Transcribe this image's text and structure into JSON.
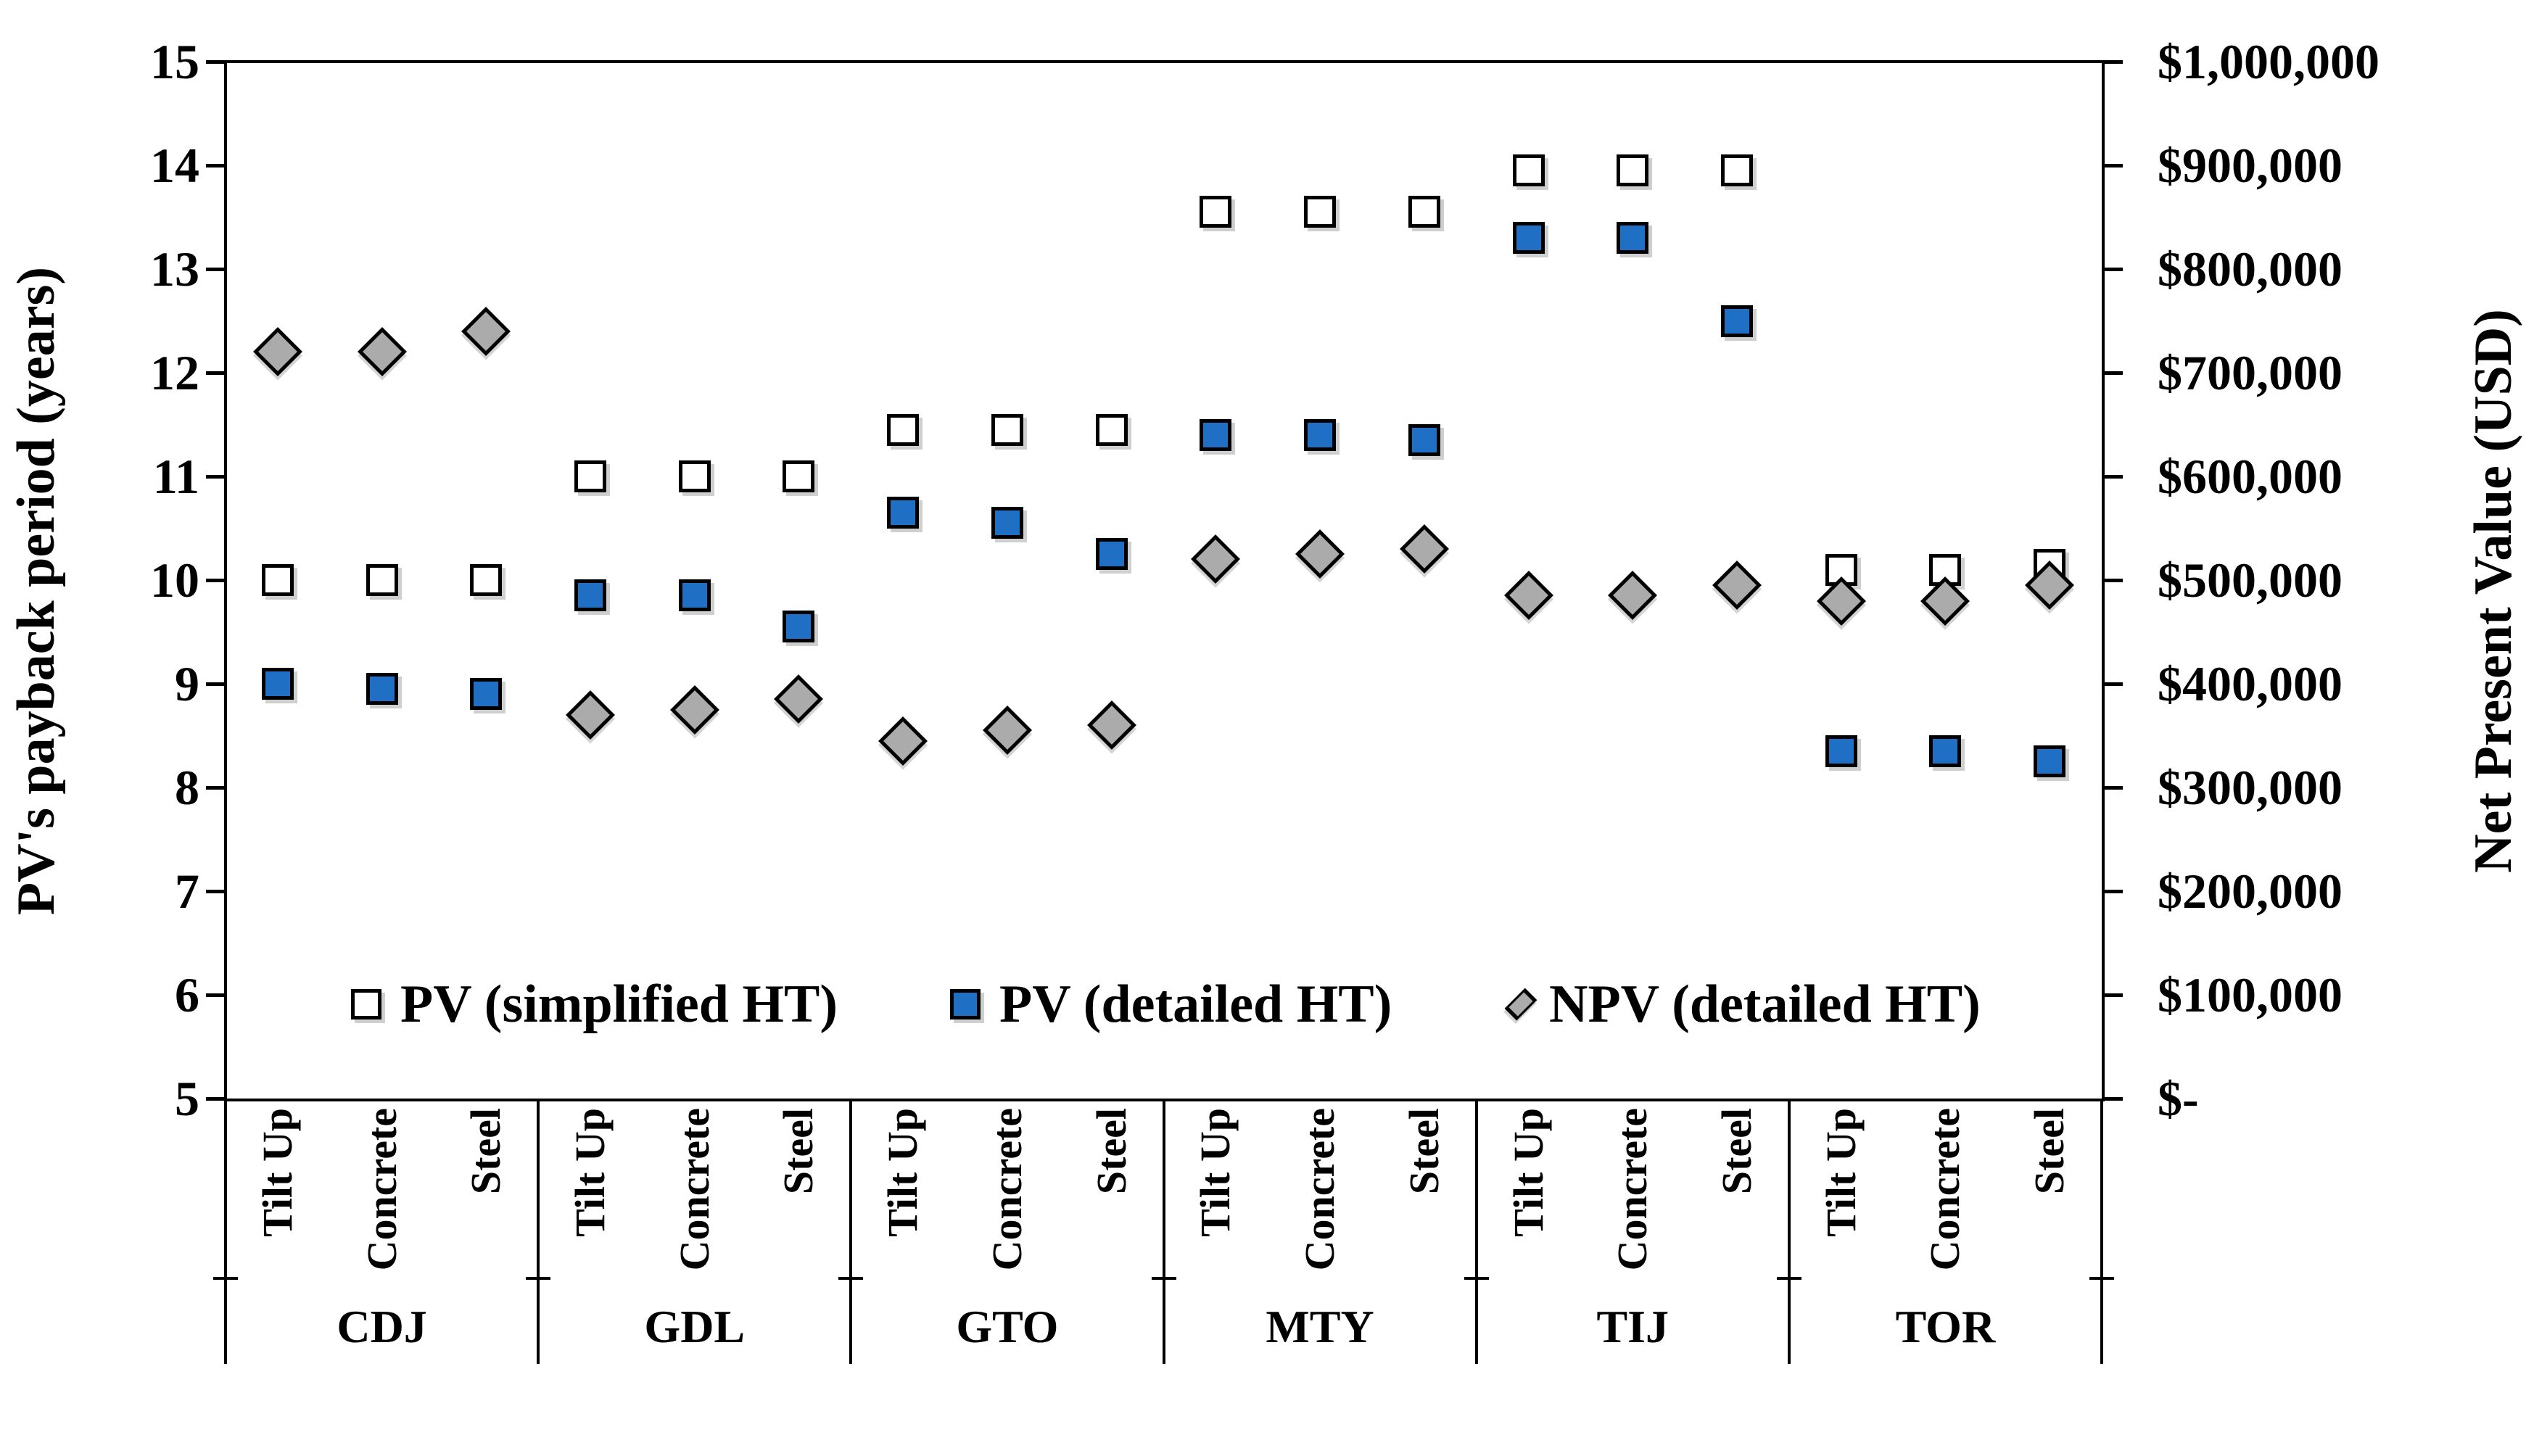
{
  "chart_data": {
    "type": "scatter",
    "title": "",
    "left_axis": {
      "label": "PV's payback  period  (years)",
      "min": 5,
      "max": 15,
      "tick_step": 1,
      "ticks": [
        "15",
        "14",
        "13",
        "12",
        "11",
        "10",
        "9",
        "8",
        "7",
        "6",
        "5"
      ]
    },
    "right_axis": {
      "label": "Net Present Value (USD)",
      "min": 0,
      "max": 1000000,
      "tick_step": 100000,
      "ticks": [
        "$1,000,000",
        "$900,000",
        "$800,000",
        "$700,000",
        "$600,000",
        "$500,000",
        "$400,000",
        "$300,000",
        "$200,000",
        "$100,000",
        "$-"
      ]
    },
    "legend_position": "bottom-inside",
    "grid": "off",
    "series": [
      {
        "name": "PV (simplified HT)",
        "marker": "square-white",
        "axis": "left"
      },
      {
        "name": "PV (detailed HT)",
        "marker": "square-blue",
        "axis": "left"
      },
      {
        "name": "NPV (detailed HT)",
        "marker": "diamond-gray",
        "axis": "right"
      }
    ],
    "sub_categories": [
      "Tilt Up",
      "Concrete",
      "Steel"
    ],
    "groups": [
      {
        "name": "CDJ",
        "items": [
          {
            "label": "Tilt Up",
            "pv_simplified_years": 10.0,
            "pv_detailed_years": 9.0,
            "npv_usd": 720000
          },
          {
            "label": "Concrete",
            "pv_simplified_years": 10.0,
            "pv_detailed_years": 8.95,
            "npv_usd": 720000
          },
          {
            "label": "Steel",
            "pv_simplified_years": 10.0,
            "pv_detailed_years": 8.9,
            "npv_usd": 740000
          }
        ]
      },
      {
        "name": "GDL",
        "items": [
          {
            "label": "Tilt Up",
            "pv_simplified_years": 11.0,
            "pv_detailed_years": 9.85,
            "npv_usd": 370000
          },
          {
            "label": "Concrete",
            "pv_simplified_years": 11.0,
            "pv_detailed_years": 9.85,
            "npv_usd": 375000
          },
          {
            "label": "Steel",
            "pv_simplified_years": 11.0,
            "pv_detailed_years": 9.55,
            "npv_usd": 385000
          }
        ]
      },
      {
        "name": "GTO",
        "items": [
          {
            "label": "Tilt Up",
            "pv_simplified_years": 11.45,
            "pv_detailed_years": 10.65,
            "npv_usd": 345000
          },
          {
            "label": "Concrete",
            "pv_simplified_years": 11.45,
            "pv_detailed_years": 10.55,
            "npv_usd": 355000
          },
          {
            "label": "Steel",
            "pv_simplified_years": 11.45,
            "pv_detailed_years": 10.25,
            "npv_usd": 360000
          }
        ]
      },
      {
        "name": "MTY",
        "items": [
          {
            "label": "Tilt Up",
            "pv_simplified_years": 13.55,
            "pv_detailed_years": 11.4,
            "npv_usd": 520000
          },
          {
            "label": "Concrete",
            "pv_simplified_years": 13.55,
            "pv_detailed_years": 11.4,
            "npv_usd": 525000
          },
          {
            "label": "Steel",
            "pv_simplified_years": 13.55,
            "pv_detailed_years": 11.35,
            "npv_usd": 530000
          }
        ]
      },
      {
        "name": "TIJ",
        "items": [
          {
            "label": "Tilt Up",
            "pv_simplified_years": 13.95,
            "pv_detailed_years": 13.3,
            "npv_usd": 485000
          },
          {
            "label": "Concrete",
            "pv_simplified_years": 13.95,
            "pv_detailed_years": 13.3,
            "npv_usd": 485000
          },
          {
            "label": "Steel",
            "pv_simplified_years": 13.95,
            "pv_detailed_years": 12.5,
            "npv_usd": 495000
          }
        ]
      },
      {
        "name": "TOR",
        "items": [
          {
            "label": "Tilt Up",
            "pv_simplified_years": 10.1,
            "pv_detailed_years": 8.35,
            "npv_usd": 480000
          },
          {
            "label": "Concrete",
            "pv_simplified_years": 10.1,
            "pv_detailed_years": 8.35,
            "npv_usd": 480000
          },
          {
            "label": "Steel",
            "pv_simplified_years": 10.15,
            "pv_detailed_years": 8.25,
            "npv_usd": 495000
          }
        ]
      }
    ],
    "colors": {
      "pv_simplified_fill": "#ffffff",
      "pv_detailed_fill": "#1F6FC4",
      "npv_fill": "#ABABAB",
      "marker_border": "#000000",
      "axis": "#000000"
    }
  }
}
